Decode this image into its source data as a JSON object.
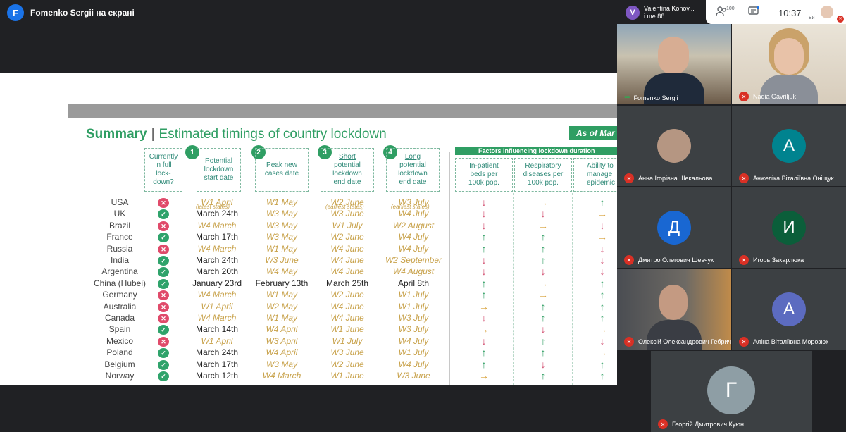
{
  "presenter": {
    "initial": "F",
    "label": "Fomenko Sergii на екрані"
  },
  "top_bar": {
    "names_initial": "V",
    "names_line1": "Valentina Konov...",
    "names_line2": "і ще 88",
    "participant_count": "100",
    "clock": "10:37",
    "you_label": "Ви"
  },
  "slide": {
    "title_bold": "Summary",
    "title_sep": "|",
    "title_rest": "Estimated timings of country lockdown",
    "as_of": "As of Mar",
    "factors_band": "Factors influencing lockdown duration",
    "col_status": "Currently in full lock-down?",
    "col1": "Potential lockdown start date",
    "col2": "Peak new cases date",
    "col3_top": "Short",
    "col3": "potential lockdown end date",
    "col4_top": "Long",
    "col4": "potential lockdown end date",
    "f1": "In-patient beds per 100k pop.",
    "f2": "Respiratory diseases per 100k pop.",
    "f3": "Ability to manage epidemic",
    "badges": [
      "1",
      "2",
      "3",
      "4"
    ],
    "note_latest": "(latest states)",
    "note_earliest1": "(earliest states)",
    "note_earliest2": "(earliest states)",
    "rows": [
      {
        "country": "USA",
        "status": "no",
        "start": "W1 April",
        "peak": "W1 May",
        "short": "W2 June",
        "long": "W3 July",
        "a1": "down",
        "a2": "right",
        "a3": "up"
      },
      {
        "country": "UK",
        "status": "yes",
        "start": "March 24th",
        "peak": "W3 May",
        "short": "W3 June",
        "long": "W4 July",
        "a1": "down",
        "a2": "down",
        "a3": "right"
      },
      {
        "country": "Brazil",
        "status": "no",
        "start": "W4 March",
        "peak": "W3 May",
        "short": "W1 July",
        "long": "W2 August",
        "a1": "down",
        "a2": "right",
        "a3": "down"
      },
      {
        "country": "France",
        "status": "yes",
        "start": "March 17th",
        "peak": "W3 May",
        "short": "W2 June",
        "long": "W4 July",
        "a1": "up",
        "a2": "up",
        "a3": "right"
      },
      {
        "country": "Russia",
        "status": "no",
        "start": "W4 March",
        "peak": "W1 May",
        "short": "W4 June",
        "long": "W4 July",
        "a1": "up",
        "a2": "up",
        "a3": "down"
      },
      {
        "country": "India",
        "status": "yes",
        "start": "March 24th",
        "peak": "W3 June",
        "short": "W4 June",
        "long": "W2 September",
        "a1": "down",
        "a2": "up",
        "a3": "down"
      },
      {
        "country": "Argentina",
        "status": "yes",
        "start": "March 20th",
        "peak": "W4 May",
        "short": "W4 June",
        "long": "W4 August",
        "a1": "down",
        "a2": "down",
        "a3": "down"
      },
      {
        "country": "China (Hubei)",
        "status": "yes",
        "start": "January 23rd",
        "peak": "February 13th",
        "short": "March 25th",
        "long": "April 8th",
        "a1": "up",
        "a2": "right",
        "a3": "up"
      },
      {
        "country": "Germany",
        "status": "no",
        "start": "W4 March",
        "peak": "W1 May",
        "short": "W2 June",
        "long": "W1 July",
        "a1": "up",
        "a2": "right",
        "a3": "up"
      },
      {
        "country": "Australia",
        "status": "no",
        "start": "W1 April",
        "peak": "W2 May",
        "short": "W4 June",
        "long": "W1 July",
        "a1": "right",
        "a2": "up",
        "a3": "up"
      },
      {
        "country": "Canada",
        "status": "no",
        "start": "W4 March",
        "peak": "W1 May",
        "short": "W4 June",
        "long": "W3 July",
        "a1": "down",
        "a2": "up",
        "a3": "up"
      },
      {
        "country": "Spain",
        "status": "yes",
        "start": "March 14th",
        "peak": "W4 April",
        "short": "W1 June",
        "long": "W3 July",
        "a1": "right",
        "a2": "down",
        "a3": "right"
      },
      {
        "country": "Mexico",
        "status": "no",
        "start": "W1 April",
        "peak": "W3 April",
        "short": "W1 July",
        "long": "W4 July",
        "a1": "down",
        "a2": "up",
        "a3": "down"
      },
      {
        "country": "Poland",
        "status": "yes",
        "start": "March 24th",
        "peak": "W4 April",
        "short": "W3 June",
        "long": "W1 July",
        "a1": "up",
        "a2": "up",
        "a3": "right"
      },
      {
        "country": "Belgium",
        "status": "yes",
        "start": "March 17th",
        "peak": "W3 May",
        "short": "W2 June",
        "long": "W4 July",
        "a1": "up",
        "a2": "down",
        "a3": "up"
      },
      {
        "country": "Norway",
        "status": "yes",
        "start": "March 12th",
        "peak": "W4 March",
        "short": "W1 June",
        "long": "W3 June",
        "a1": "right",
        "a2": "up",
        "a3": "up"
      }
    ]
  },
  "participants": [
    {
      "name": "Fomenko Sergii",
      "mic": "on",
      "color": "#6b5a48"
    },
    {
      "name": "Nadia Gavriljuk",
      "mic": "off",
      "color": "#c9b89d"
    },
    {
      "name": "Анна Ігорівна Шекальова",
      "mic": "off",
      "initial": "",
      "color": "#b59682"
    },
    {
      "name": "Анжеліка Віталіївна Оніщук",
      "mic": "off",
      "initial": "А",
      "color": "#00838f"
    },
    {
      "name": "Дмитро Олегович Шевчук",
      "mic": "off",
      "initial": "Д",
      "color": "#1967d2"
    },
    {
      "name": "Игорь Закарлюка",
      "mic": "off",
      "initial": "И",
      "color": "#0b5e3a"
    },
    {
      "name": "Олексій Олександрович Гебрич",
      "mic": "off",
      "color": "#5a5148"
    },
    {
      "name": "Аліна Віталіївна Морозюк",
      "mic": "off",
      "initial": "А",
      "color": "#5c6bc0"
    },
    {
      "name": "Георгій Дмитрович Куюн",
      "mic": "off",
      "initial": "Г",
      "color": "#8e9ea5"
    }
  ],
  "colors": {
    "accent": "#2f9e63",
    "yes": "#2fa36b",
    "no": "#e04a6a",
    "gold": "#c8a24b",
    "mic_off": "#d93025"
  },
  "icons": {
    "status_yes": "✓",
    "status_no": "✕",
    "arrow_down": "↓",
    "arrow_up": "↑",
    "arrow_right": "→",
    "mic_off": "mic-off-icon",
    "people": "people-icon",
    "chat": "chat-icon"
  }
}
